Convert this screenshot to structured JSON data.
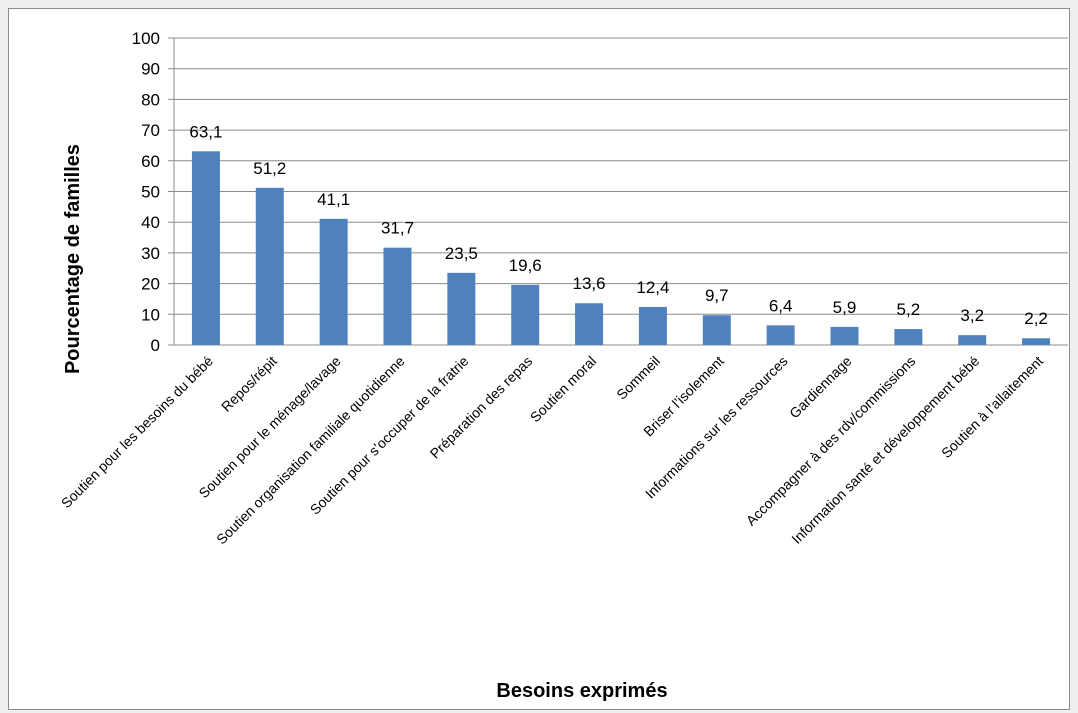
{
  "chart_data": {
    "type": "bar",
    "title": "",
    "xlabel": "Besoins exprimés",
    "ylabel": "Pourcentage de familles",
    "ylim": [
      0,
      100
    ],
    "yticks": [
      0,
      10,
      20,
      30,
      40,
      50,
      60,
      70,
      80,
      90,
      100
    ],
    "grid": true,
    "bar_color": "#4f81bd",
    "categories": [
      "Soutien pour les besoins du bébé",
      "Repos/répit",
      "Soutien pour le ménage/lavage",
      "Soutien organisation familiale quotidienne",
      "Soutien pour s’occuper de la fratrie",
      "Préparation des repas",
      "Soutien moral",
      "Sommeil",
      "Briser l’isolement",
      "Informations sur les ressources",
      "Gardiennage",
      "Accompagner à des rdv/commissions",
      "Information santé et développement bébé",
      "Soutien à l’allaitement"
    ],
    "values": [
      63.1,
      51.2,
      41.1,
      31.7,
      23.5,
      19.6,
      13.6,
      12.4,
      9.7,
      6.4,
      5.9,
      5.2,
      3.2,
      2.2
    ],
    "data_labels": [
      "63,1",
      "51,2",
      "41,1",
      "31,7",
      "23,5",
      "19,6",
      "13,6",
      "12,4",
      "9,7",
      "6,4",
      "5,9",
      "5,2",
      "3,2",
      "2,2"
    ]
  }
}
